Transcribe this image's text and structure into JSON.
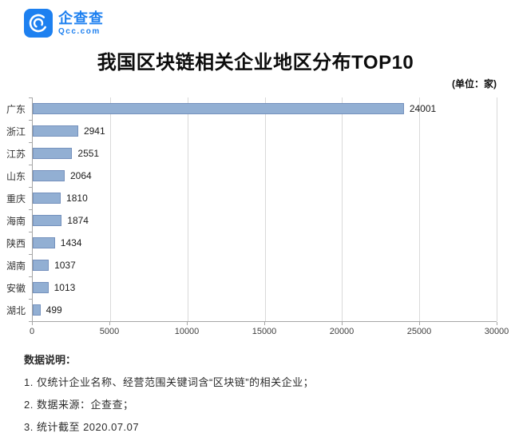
{
  "logo": {
    "name": "企查查",
    "domain": "Qcc.com"
  },
  "title": "我国区块链相关企业地区分布TOP10",
  "unit_label": "(单位：家)",
  "chart_data": {
    "type": "bar",
    "orientation": "horizontal",
    "title": "我国区块链相关企业地区分布TOP10",
    "unit": "家",
    "categories": [
      "广东",
      "浙江",
      "江苏",
      "山东",
      "重庆",
      "海南",
      "陕西",
      "湖南",
      "安徽",
      "湖北"
    ],
    "values": [
      24001,
      2941,
      2551,
      2064,
      1810,
      1874,
      1434,
      1037,
      1013,
      499
    ],
    "xlim": [
      0,
      30000
    ],
    "xticks": [
      0,
      5000,
      10000,
      15000,
      20000,
      25000,
      30000
    ],
    "grid": true,
    "legend": false,
    "value_labels": true,
    "bar_color": "#92afd3",
    "bar_border_color": "#7591bd",
    "gridline_color": "#d9d9d9",
    "axis_color": "#a6a6a6"
  },
  "notes": {
    "heading": "数据说明：",
    "items": [
      "1. 仅统计企业名称、经营范围关键词含“区块链”的相关企业；",
      "2. 数据来源：企查查；",
      "3. 统计截至 2020.07.07"
    ]
  },
  "brand_color": "#1d80f0"
}
